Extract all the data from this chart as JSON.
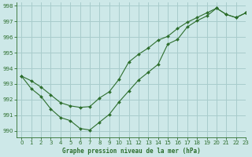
{
  "title": "Graphe pression niveau de la mer (hPa)",
  "background_color": "#cde8e8",
  "grid_color": "#a8cccc",
  "line_color": "#2d6e2d",
  "marker_color": "#2d6e2d",
  "xlim": [
    -0.5,
    23
  ],
  "ylim": [
    989.6,
    998.2
  ],
  "yticks": [
    990,
    991,
    992,
    993,
    994,
    995,
    996,
    997,
    998
  ],
  "xticks": [
    0,
    1,
    2,
    3,
    4,
    5,
    6,
    7,
    8,
    9,
    10,
    11,
    12,
    13,
    14,
    15,
    16,
    17,
    18,
    19,
    20,
    21,
    22,
    23
  ],
  "series1_x": [
    0,
    1,
    2,
    3,
    4,
    5,
    6,
    7,
    8,
    9,
    10,
    11,
    12,
    13,
    14,
    15,
    16,
    17,
    18,
    19,
    20,
    21,
    22,
    23
  ],
  "series1_y": [
    993.5,
    992.7,
    992.2,
    991.4,
    990.85,
    990.65,
    990.15,
    990.05,
    990.55,
    991.05,
    991.85,
    992.55,
    993.25,
    993.75,
    994.25,
    995.55,
    995.85,
    996.65,
    997.05,
    997.35,
    997.85,
    997.45,
    997.25,
    997.55
  ],
  "series2_x": [
    0,
    1,
    2,
    3,
    4,
    5,
    6,
    7,
    8,
    9,
    10,
    11,
    12,
    13,
    14,
    15,
    16,
    17,
    18,
    19,
    20,
    21,
    22,
    23
  ],
  "series2_y": [
    993.5,
    993.2,
    992.8,
    992.3,
    991.8,
    991.6,
    991.5,
    991.55,
    992.1,
    992.5,
    993.3,
    994.4,
    994.9,
    995.3,
    995.8,
    996.05,
    996.55,
    996.95,
    997.25,
    997.55,
    997.85,
    997.45,
    997.25,
    997.55
  ]
}
